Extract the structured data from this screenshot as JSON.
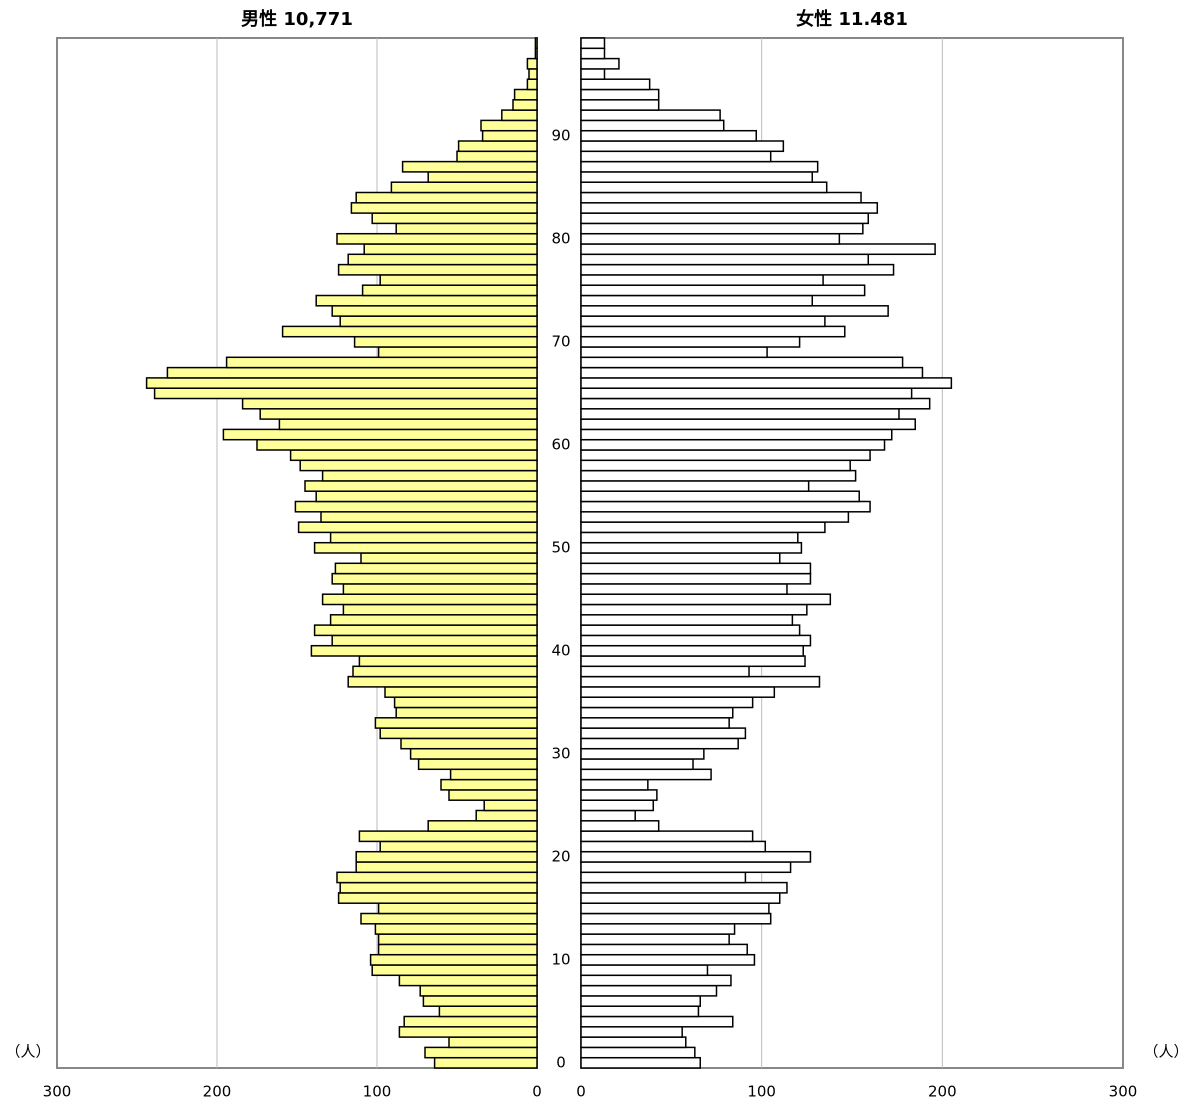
{
  "chart_data": [
    {
      "type": "pyramid-bar",
      "side": "left",
      "title": "男性  10,771",
      "unit": "（人）",
      "color": "#ffff99",
      "edge": "#000000",
      "xlim": [
        0,
        300
      ],
      "xticks": [
        0,
        100,
        200,
        300
      ],
      "grid": true,
      "reversed": true,
      "categories": [
        0,
        null,
        null,
        null,
        null,
        null,
        null,
        null,
        null,
        null,
        10,
        null,
        null,
        null,
        null,
        null,
        null,
        null,
        null,
        null,
        20,
        null,
        null,
        null,
        null,
        null,
        null,
        null,
        null,
        null,
        30,
        null,
        null,
        null,
        null,
        null,
        null,
        null,
        null,
        null,
        40,
        null,
        null,
        null,
        null,
        null,
        null,
        null,
        null,
        null,
        50,
        null,
        null,
        null,
        null,
        null,
        null,
        null,
        null,
        null,
        60,
        null,
        null,
        null,
        null,
        null,
        null,
        null,
        null,
        null,
        70,
        null,
        null,
        null,
        null,
        null,
        null,
        null,
        null,
        null,
        80,
        null,
        null,
        null,
        null,
        null,
        null,
        null,
        null,
        null,
        90,
        null,
        null,
        null,
        null,
        null,
        null,
        null,
        null,
        null
      ],
      "values": [
        64,
        70,
        55,
        86,
        83,
        61,
        71,
        73,
        86,
        103,
        104,
        99,
        99,
        101,
        110,
        99,
        124,
        123,
        125,
        113,
        113,
        98,
        111,
        68,
        38,
        33,
        55,
        60,
        54,
        74,
        79,
        85,
        98,
        101,
        88,
        89,
        95,
        118,
        115,
        111,
        141,
        128,
        139,
        129,
        121,
        134,
        121,
        128,
        126,
        110,
        139,
        129,
        149,
        135,
        151,
        138,
        145,
        134,
        148,
        154,
        175,
        196,
        161,
        173,
        184,
        239,
        244,
        231,
        194,
        99,
        114,
        159,
        123,
        128,
        138,
        109,
        98,
        124,
        118,
        108,
        125,
        88,
        103,
        116,
        113,
        91,
        68,
        84,
        50,
        49,
        34,
        35,
        22,
        15,
        14,
        6,
        5,
        6,
        1,
        1
      ]
    },
    {
      "type": "pyramid-bar",
      "side": "right",
      "title": "女性  11.481",
      "unit": "（人）",
      "color": "#ffffff",
      "edge": "#000000",
      "xlim": [
        0,
        300
      ],
      "xticks": [
        0,
        100,
        200,
        300
      ],
      "grid": true,
      "reversed": false,
      "values": [
        66,
        63,
        58,
        56,
        84,
        65,
        66,
        75,
        83,
        70,
        96,
        92,
        82,
        85,
        105,
        104,
        110,
        114,
        91,
        116,
        127,
        102,
        95,
        43,
        30,
        40,
        42,
        37,
        72,
        62,
        68,
        87,
        91,
        82,
        84,
        95,
        107,
        132,
        93,
        124,
        123,
        127,
        121,
        117,
        125,
        138,
        114,
        127,
        127,
        110,
        122,
        120,
        135,
        148,
        160,
        154,
        126,
        152,
        149,
        160,
        168,
        172,
        185,
        176,
        193,
        183,
        205,
        189,
        178,
        103,
        121,
        146,
        135,
        170,
        128,
        157,
        134,
        173,
        159,
        196,
        143,
        156,
        159,
        164,
        155,
        136,
        128,
        131,
        105,
        112,
        97,
        79,
        77,
        43,
        43,
        38,
        13,
        21,
        13,
        13
      ]
    }
  ]
}
